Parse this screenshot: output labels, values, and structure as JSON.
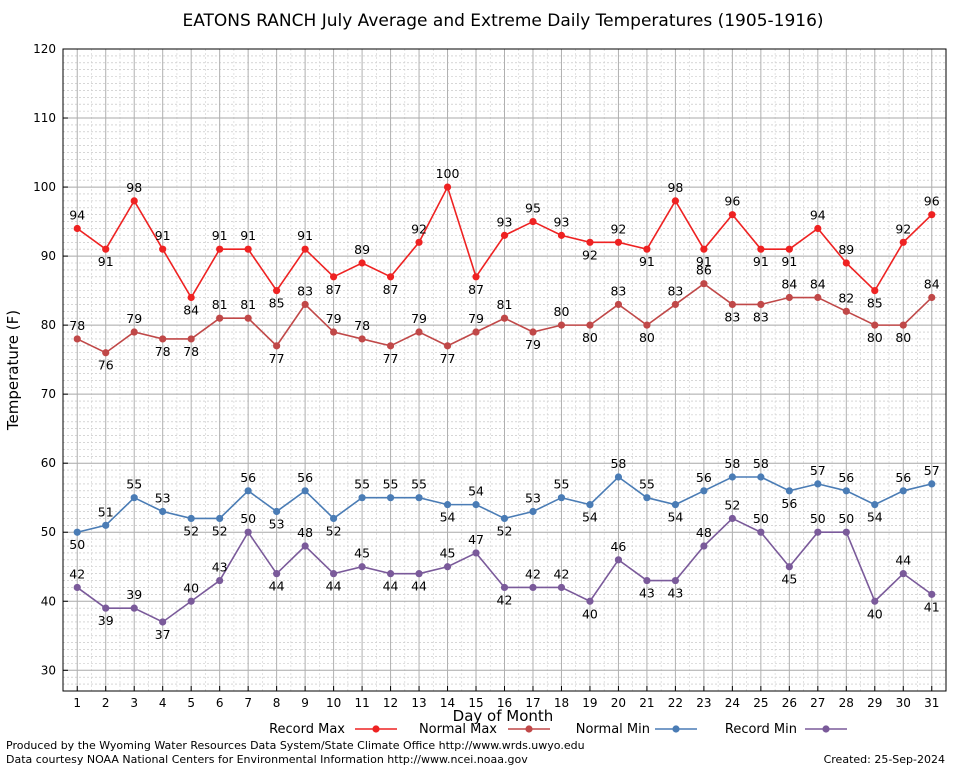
{
  "chart_data": {
    "type": "line",
    "title": "EATONS RANCH July Average and Extreme Daily Temperatures (1905-1916)",
    "xlabel": "Day of Month",
    "ylabel": "Temperature (F)",
    "ylim": [
      27,
      120
    ],
    "yticks": [
      30,
      40,
      50,
      60,
      70,
      80,
      90,
      100,
      110,
      120
    ],
    "x": [
      1,
      2,
      3,
      4,
      5,
      6,
      7,
      8,
      9,
      10,
      11,
      12,
      13,
      14,
      15,
      16,
      17,
      18,
      19,
      20,
      21,
      22,
      23,
      24,
      25,
      26,
      27,
      28,
      29,
      30,
      31
    ],
    "grid": true,
    "legend_position": "bottom",
    "series": [
      {
        "name": "Record Max",
        "color": "#ee2222",
        "values": [
          94,
          91,
          98,
          91,
          84,
          91,
          91,
          85,
          91,
          87,
          89,
          87,
          92,
          100,
          87,
          93,
          95,
          93,
          92,
          92,
          91,
          98,
          91,
          96,
          91,
          91,
          94,
          89,
          85,
          92,
          96
        ]
      },
      {
        "name": "Normal Max",
        "color": "#c04848",
        "values": [
          78,
          76,
          79,
          78,
          78,
          81,
          81,
          77,
          83,
          79,
          78,
          77,
          79,
          77,
          79,
          81,
          79,
          80,
          80,
          83,
          80,
          83,
          86,
          83,
          83,
          84,
          84,
          82,
          80,
          80,
          84
        ]
      },
      {
        "name": "Normal Min",
        "color": "#4a7cb5",
        "values": [
          50,
          51,
          55,
          53,
          52,
          52,
          56,
          53,
          56,
          52,
          55,
          55,
          55,
          54,
          54,
          52,
          53,
          55,
          54,
          58,
          55,
          54,
          56,
          58,
          58,
          56,
          57,
          56,
          54,
          56,
          57
        ]
      },
      {
        "name": "Record Min",
        "color": "#7a5a9a",
        "values": [
          42,
          39,
          39,
          37,
          40,
          43,
          50,
          44,
          48,
          44,
          45,
          44,
          44,
          45,
          47,
          42,
          42,
          42,
          40,
          46,
          43,
          43,
          48,
          52,
          50,
          45,
          50,
          50,
          40,
          44,
          41
        ]
      }
    ]
  },
  "footer": {
    "produced_by": "Produced by the Wyoming Water Resources Data System/State Climate Office http://www.wrds.uwyo.edu",
    "data_courtesy": "Data courtesy NOAA National Centers for Environmental Information http://www.ncei.noaa.gov",
    "created": "Created:  25-Sep-2024"
  }
}
